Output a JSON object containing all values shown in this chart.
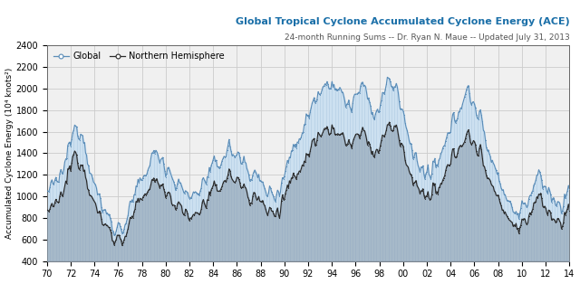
{
  "title": "Global Tropical Cyclone Accumulated Cyclone Energy (ACE)",
  "subtitle": "24-month Running Sums -- Dr. Ryan N. Maue -- Updated July 31, 2013",
  "ylabel": "Accumulated Cyclone Energy (10⁴ knots²)",
  "xmin": 1970,
  "xmax": 2014,
  "ymin": 400,
  "ymax": 2400,
  "yticks": [
    400,
    600,
    800,
    1000,
    1200,
    1400,
    1600,
    1800,
    2000,
    2200,
    2400
  ],
  "xtick_labels": [
    "70",
    "72",
    "74",
    "76",
    "78",
    "80",
    "82",
    "84",
    "86",
    "88",
    "90",
    "92",
    "94",
    "96",
    "98",
    "00",
    "02",
    "04",
    "06",
    "08",
    "10",
    "12",
    "14"
  ],
  "global_fill": "#cce0f0",
  "global_line": "#5b8db8",
  "nh_fill": "#8899aa",
  "nh_line": "#2a2a2a",
  "title_color": "#1a6fa8",
  "subtitle_color": "#555555",
  "bg_color": "#f0f0f0",
  "grid_color": "#cccccc",
  "legend_global": "Global",
  "legend_nh": "Northern Hemisphere"
}
